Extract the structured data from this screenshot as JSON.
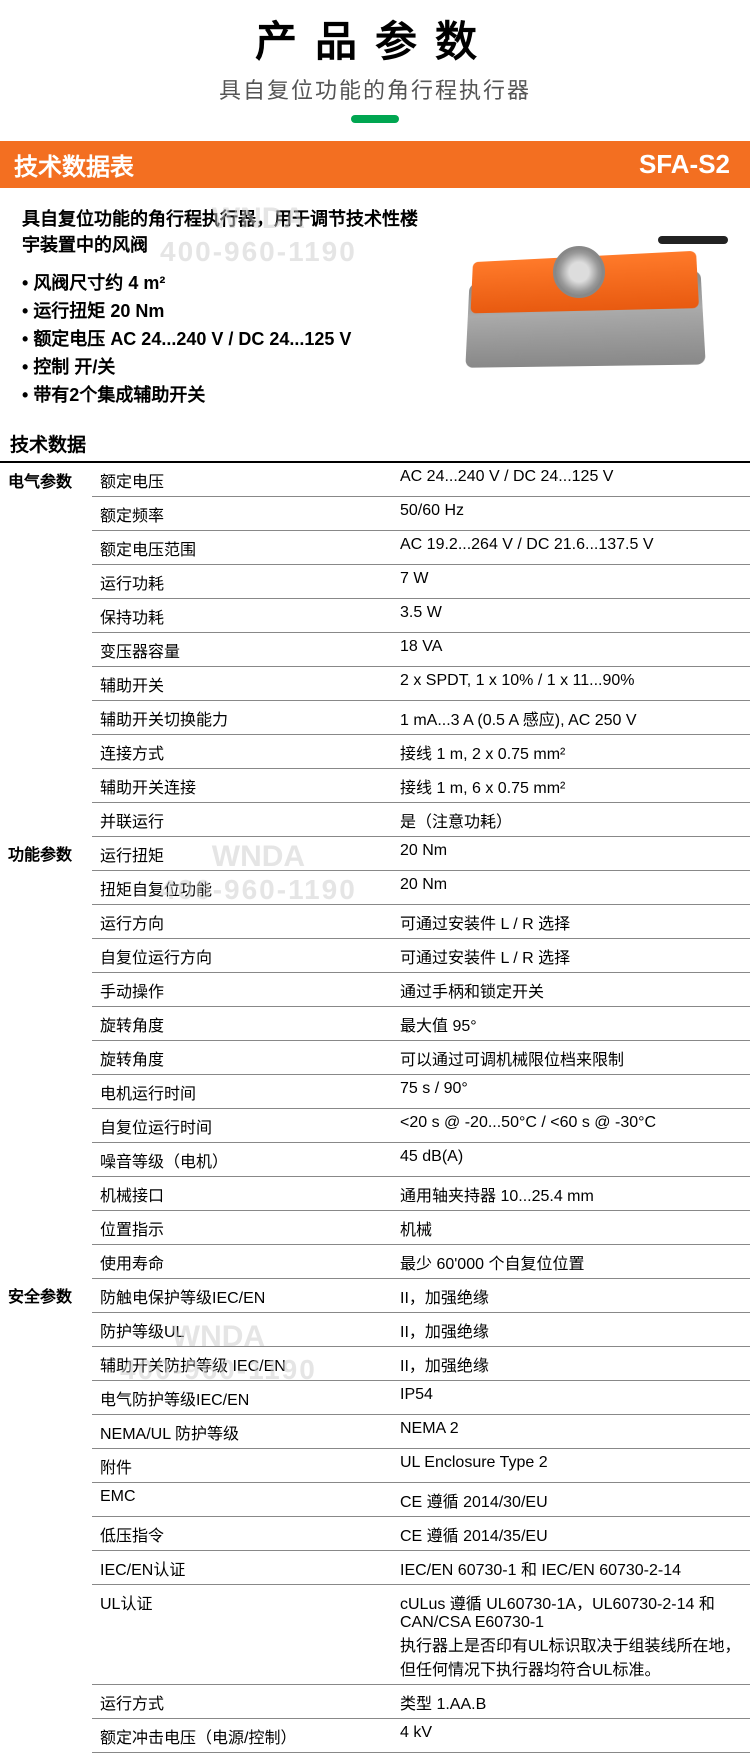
{
  "header": {
    "title": "产品参数",
    "subtitle": "具自复位功能的角行程执行器"
  },
  "banner": {
    "left": "技术数据表",
    "right": "SFA-S2"
  },
  "intro": {
    "description": "具自复位功能的角行程执行器，用于调节技术性楼宇装置中的风阀",
    "bullets": [
      "风阀尺寸约 4 m²",
      "运行扭矩 20 Nm",
      "额定电压 AC 24...240 V / DC 24...125 V",
      "控制 开/关",
      "带有2个集成辅助开关"
    ]
  },
  "section_title": "技术数据",
  "categories": [
    {
      "name": "电气参数",
      "rows": [
        {
          "label": "额定电压",
          "value": "AC 24...240 V / DC 24...125 V"
        },
        {
          "label": "额定频率",
          "value": "50/60 Hz"
        },
        {
          "label": "额定电压范围",
          "value": "AC 19.2...264 V / DC 21.6...137.5 V"
        },
        {
          "label": "运行功耗",
          "value": "7 W"
        },
        {
          "label": "保持功耗",
          "value": "3.5 W"
        },
        {
          "label": "变压器容量",
          "value": "18 VA"
        },
        {
          "label": "辅助开关",
          "value": "2 x SPDT, 1 x 10% / 1 x 11...90%"
        },
        {
          "label": "辅助开关切换能力",
          "value": "1 mA...3 A (0.5 A 感应), AC 250 V"
        },
        {
          "label": "连接方式",
          "value": "接线 1 m, 2 x 0.75 mm²"
        },
        {
          "label": "辅助开关连接",
          "value": "接线 1 m, 6 x 0.75 mm²"
        },
        {
          "label": "并联运行",
          "value": "是（注意功耗）"
        }
      ]
    },
    {
      "name": "功能参数",
      "rows": [
        {
          "label": "运行扭矩",
          "value": "20 Nm"
        },
        {
          "label": "扭矩自复位功能",
          "value": "20 Nm"
        },
        {
          "label": "运行方向",
          "value": "可通过安装件 L / R 选择"
        },
        {
          "label": "自复位运行方向",
          "value": "可通过安装件 L / R 选择"
        },
        {
          "label": "手动操作",
          "value": "通过手柄和锁定开关"
        },
        {
          "label": "旋转角度",
          "value": "最大值 95°"
        },
        {
          "label": "旋转角度",
          "value": "可以通过可调机械限位档来限制"
        },
        {
          "label": "电机运行时间",
          "value": "75 s / 90°"
        },
        {
          "label": "自复位运行时间",
          "value": "<20 s @ -20...50°C / <60 s @ -30°C"
        },
        {
          "label": "噪音等级（电机）",
          "value": "45 dB(A)"
        },
        {
          "label": "机械接口",
          "value": "通用轴夹持器 10...25.4 mm"
        },
        {
          "label": "位置指示",
          "value": "机械"
        },
        {
          "label": "使用寿命",
          "value": "最少 60'000 个自复位位置"
        }
      ]
    },
    {
      "name": "安全参数",
      "rows": [
        {
          "label": "防触电保护等级IEC/EN",
          "value": "II，加强绝缘"
        },
        {
          "label": "防护等级UL",
          "value": "II，加强绝缘"
        },
        {
          "label": "辅助开关防护等级 IEC/EN",
          "value": "II，加强绝缘"
        },
        {
          "label": "电气防护等级IEC/EN",
          "value": "IP54"
        },
        {
          "label": "NEMA/UL 防护等级",
          "value": "NEMA 2"
        },
        {
          "label": "附件",
          "value": "UL Enclosure Type 2"
        },
        {
          "label": "EMC",
          "value": "CE 遵循 2014/30/EU"
        },
        {
          "label": "低压指令",
          "value": "CE 遵循 2014/35/EU"
        },
        {
          "label": "IEC/EN认证",
          "value": "IEC/EN 60730-1 和 IEC/EN 60730-2-14"
        },
        {
          "label": "UL认证",
          "value": "cULus 遵循 UL60730-1A，UL60730-2-14 和 CAN/CSA E60730-1\n执行器上是否印有UL标识取决于组装线所在地，但任何情况下执行器均符合UL标准。"
        },
        {
          "label": "运行方式",
          "value": "类型 1.AA.B"
        },
        {
          "label": "额定冲击电压（电源/控制）",
          "value": "4 kV"
        }
      ]
    }
  ],
  "watermark": {
    "brand": "WNDA",
    "phone": "400-960-1190"
  },
  "colors": {
    "orange": "#f36f21",
    "green": "#00a651",
    "border": "#888888"
  }
}
